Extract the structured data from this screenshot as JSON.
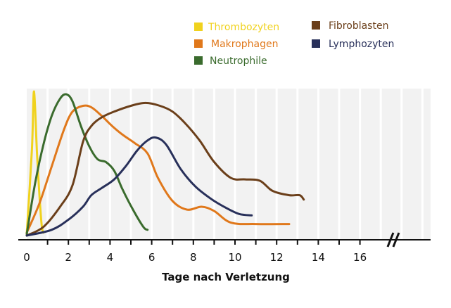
{
  "chart_data": {
    "type": "line",
    "title": "",
    "xlabel": "Tage nach Verletzung",
    "ylabel": "",
    "xlim": [
      0,
      19.4
    ],
    "ylim": [
      0,
      100
    ],
    "x_ticks": [
      0,
      2,
      4,
      6,
      8,
      10,
      12,
      14,
      16
    ],
    "axis_break_at": 17.6,
    "grid": true,
    "colors": {
      "background": "#f2f2f2",
      "grid": "#ffffff",
      "axis": "#111111"
    },
    "series": [
      {
        "name": "Thrombozyten",
        "color": "#f0d21e",
        "x": [
          0,
          0.25,
          0.35,
          0.5,
          0.7,
          0.8
        ],
        "y": [
          1,
          60,
          100,
          55,
          10,
          2
        ]
      },
      {
        "name": "Makrophagen",
        "color": "#e0781b",
        "x": [
          0,
          0.6,
          1.2,
          1.8,
          2.2,
          2.7,
          3.1,
          3.6,
          4.1,
          4.6,
          5.2,
          5.8,
          6.3,
          7,
          7.7,
          8.4,
          9,
          9.8,
          11,
          12.6
        ],
        "y": [
          2,
          22,
          48,
          74,
          86,
          90,
          89,
          83,
          76,
          70,
          64,
          57,
          40,
          24,
          18,
          20,
          17,
          9,
          8,
          8
        ]
      },
      {
        "name": "Neutrophile",
        "color": "#3a6b2d",
        "x": [
          0,
          0.4,
          0.8,
          1.2,
          1.6,
          1.9,
          2.2,
          2.6,
          3,
          3.4,
          3.8,
          4.2,
          4.6,
          5.1,
          5.6,
          5.8
        ],
        "y": [
          1,
          36,
          63,
          83,
          95,
          98,
          93,
          76,
          62,
          53,
          51,
          45,
          32,
          18,
          6,
          4
        ]
      },
      {
        "name": "Fibroblasten",
        "color": "#6b3f1a",
        "x": [
          0,
          0.8,
          1.6,
          2.2,
          2.7,
          3.1,
          3.6,
          4.2,
          5,
          5.7,
          6.4,
          7,
          7.6,
          8.3,
          9,
          9.8,
          10.5,
          11.2,
          11.8,
          12.6,
          13.1,
          13.3
        ],
        "y": [
          0,
          6,
          20,
          35,
          65,
          76,
          82,
          86,
          90,
          92,
          90,
          86,
          78,
          66,
          51,
          40,
          39,
          38,
          31,
          28,
          28,
          25
        ]
      },
      {
        "name": "Lymphozyten",
        "color": "#28305a",
        "x": [
          0,
          1.2,
          2,
          2.7,
          3.1,
          3.6,
          4.2,
          4.8,
          5.3,
          5.8,
          6.2,
          6.7,
          7.4,
          8.1,
          8.9,
          9.6,
          10.2,
          10.8
        ],
        "y": [
          0,
          4,
          11,
          20,
          28,
          33,
          39,
          49,
          59,
          66,
          68,
          63,
          46,
          34,
          25,
          19,
          15,
          14
        ]
      }
    ]
  }
}
